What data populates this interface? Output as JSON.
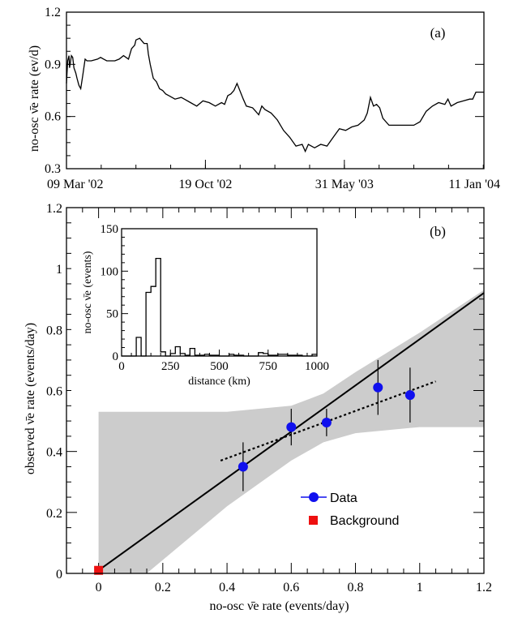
{
  "chart_data": [
    {
      "panel": "(a)",
      "type": "line",
      "ylabel": "no-osc ν̄e rate (ev/d)",
      "ylim": [
        0.3,
        1.2
      ],
      "yticks": [
        "0.3",
        "0.6",
        "0.9",
        "1.2"
      ],
      "xticks": [
        "09 Mar '02",
        "19 Oct '02",
        "31 May '03",
        "11 Jan '04"
      ],
      "xlim_days": [
        0,
        673
      ],
      "xtick_days": [
        0,
        224,
        448,
        673
      ],
      "series": [
        {
          "x": [
            0,
            2,
            4,
            5,
            8,
            10,
            12,
            15,
            17,
            20,
            23,
            26,
            30,
            33,
            40,
            50,
            55,
            60,
            65,
            70,
            78,
            85,
            92,
            100,
            105,
            110,
            112,
            118,
            125,
            130,
            132,
            135,
            140,
            145,
            150,
            155,
            160,
            165,
            175,
            185,
            190,
            200,
            210,
            220,
            230,
            240,
            250,
            255,
            260,
            265,
            270,
            275,
            285,
            290,
            300,
            305,
            310,
            315,
            320,
            330,
            335,
            340,
            345,
            350,
            360,
            370,
            380,
            385,
            390,
            400,
            410,
            420,
            430,
            440,
            450,
            460,
            470,
            480,
            485,
            490,
            495,
            500,
            505,
            510,
            520,
            530,
            540,
            545,
            550,
            560,
            570,
            580,
            590,
            600,
            610,
            615,
            620,
            630,
            640,
            650,
            655,
            660,
            665,
            673
          ],
          "y": [
            0.79,
            0.92,
            0.95,
            0.88,
            0.95,
            0.94,
            0.88,
            0.85,
            0.82,
            0.78,
            0.76,
            0.83,
            0.93,
            0.92,
            0.92,
            0.93,
            0.94,
            0.93,
            0.92,
            0.92,
            0.92,
            0.93,
            0.95,
            0.93,
            0.99,
            1.01,
            1.04,
            1.05,
            1.02,
            1.02,
            0.96,
            0.9,
            0.82,
            0.8,
            0.76,
            0.75,
            0.73,
            0.72,
            0.7,
            0.71,
            0.7,
            0.68,
            0.66,
            0.69,
            0.68,
            0.66,
            0.68,
            0.67,
            0.72,
            0.73,
            0.75,
            0.79,
            0.7,
            0.66,
            0.65,
            0.63,
            0.61,
            0.66,
            0.64,
            0.62,
            0.6,
            0.58,
            0.55,
            0.52,
            0.48,
            0.43,
            0.44,
            0.4,
            0.44,
            0.42,
            0.44,
            0.43,
            0.48,
            0.53,
            0.52,
            0.54,
            0.55,
            0.58,
            0.62,
            0.71,
            0.66,
            0.67,
            0.65,
            0.59,
            0.55,
            0.55,
            0.55,
            0.55,
            0.55,
            0.55,
            0.57,
            0.63,
            0.66,
            0.68,
            0.67,
            0.7,
            0.66,
            0.68,
            0.69,
            0.7,
            0.7,
            0.74,
            0.74,
            0.74
          ]
        }
      ]
    },
    {
      "panel": "(b)",
      "type": "scatter",
      "xlabel": "no-osc ν̄e rate (events/day)",
      "ylabel": "observed ν̄e rate (events/day)",
      "xlim": [
        -0.1,
        1.2
      ],
      "ylim": [
        0,
        1.2
      ],
      "xticks": [
        "0",
        "0.2",
        "0.4",
        "0.6",
        "0.8",
        "1",
        "1.2"
      ],
      "yticks": [
        "0",
        "0.2",
        "0.4",
        "0.6",
        "0.8",
        "1",
        "1.2"
      ],
      "series": [
        {
          "name": "Data",
          "color": "#1010ee",
          "points": [
            {
              "x": 0.45,
              "y": 0.35,
              "err": 0.08
            },
            {
              "x": 0.6,
              "y": 0.48,
              "err": 0.06
            },
            {
              "x": 0.71,
              "y": 0.495,
              "err": 0.045
            },
            {
              "x": 0.87,
              "y": 0.61,
              "err": 0.09
            },
            {
              "x": 0.97,
              "y": 0.585,
              "err": 0.09
            }
          ]
        },
        {
          "name": "Background",
          "color": "#ee1010",
          "points": [
            {
              "x": 0.0,
              "y": 0.01
            }
          ]
        }
      ],
      "solid_line": {
        "x": [
          0.0,
          1.2
        ],
        "y": [
          0.01,
          0.92
        ]
      },
      "dotted_line": {
        "x": [
          0.38,
          1.05
        ],
        "y": [
          0.37,
          0.63
        ]
      },
      "band": {
        "upper": {
          "x": [
            0.0,
            0.2,
            0.4,
            0.6,
            0.7,
            0.8,
            1.0,
            1.2
          ],
          "y": [
            0.53,
            0.53,
            0.53,
            0.55,
            0.59,
            0.66,
            0.79,
            0.93
          ]
        },
        "lower": {
          "x": [
            0.15,
            0.4,
            0.6,
            0.7,
            0.8,
            1.0,
            1.2
          ],
          "y": [
            0.0,
            0.22,
            0.37,
            0.43,
            0.46,
            0.48,
            0.48
          ]
        },
        "color": "#cccccc"
      },
      "legend_placement": "bottom-right"
    },
    {
      "panel": "inset",
      "type": "histogram",
      "xlabel": "distance (km)",
      "ylabel": "no-osc ν̄e (events)",
      "xlim": [
        0,
        1000
      ],
      "ylim": [
        0,
        150
      ],
      "xticks": [
        "0",
        "250",
        "500",
        "750",
        "1000"
      ],
      "yticks": [
        "0",
        "50",
        "100",
        "150"
      ],
      "bins": [
        {
          "x0": 0,
          "x1": 75,
          "v": 0
        },
        {
          "x0": 75,
          "x1": 100,
          "v": 22
        },
        {
          "x0": 100,
          "x1": 125,
          "v": 0
        },
        {
          "x0": 125,
          "x1": 150,
          "v": 75
        },
        {
          "x0": 150,
          "x1": 175,
          "v": 82
        },
        {
          "x0": 175,
          "x1": 200,
          "v": 115
        },
        {
          "x0": 200,
          "x1": 225,
          "v": 5
        },
        {
          "x0": 225,
          "x1": 250,
          "v": 0
        },
        {
          "x0": 250,
          "x1": 275,
          "v": 3
        },
        {
          "x0": 275,
          "x1": 300,
          "v": 11
        },
        {
          "x0": 300,
          "x1": 325,
          "v": 3
        },
        {
          "x0": 325,
          "x1": 350,
          "v": 1
        },
        {
          "x0": 350,
          "x1": 375,
          "v": 9
        },
        {
          "x0": 375,
          "x1": 425,
          "v": 1
        },
        {
          "x0": 425,
          "x1": 450,
          "v": 2
        },
        {
          "x0": 450,
          "x1": 500,
          "v": 1
        },
        {
          "x0": 500,
          "x1": 550,
          "v": 0
        },
        {
          "x0": 550,
          "x1": 575,
          "v": 2
        },
        {
          "x0": 575,
          "x1": 625,
          "v": 1
        },
        {
          "x0": 625,
          "x1": 700,
          "v": 0
        },
        {
          "x0": 700,
          "x1": 725,
          "v": 4
        },
        {
          "x0": 725,
          "x1": 750,
          "v": 3
        },
        {
          "x0": 750,
          "x1": 800,
          "v": 1
        },
        {
          "x0": 800,
          "x1": 850,
          "v": 2
        },
        {
          "x0": 850,
          "x1": 925,
          "v": 1
        },
        {
          "x0": 925,
          "x1": 975,
          "v": 0
        },
        {
          "x0": 975,
          "x1": 1000,
          "v": 2
        }
      ]
    }
  ]
}
